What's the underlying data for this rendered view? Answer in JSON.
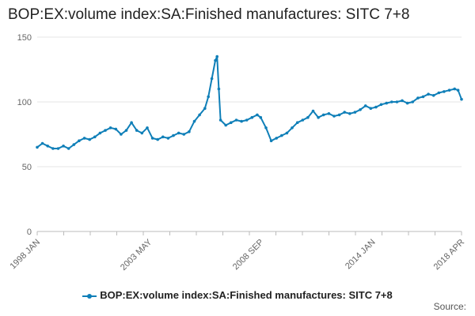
{
  "chart_data": {
    "type": "line",
    "title": "BOP:EX:volume index:SA:Finished manufactures: SITC 7+8",
    "xlabel": "",
    "ylabel": "",
    "ylim": [
      0,
      150
    ],
    "yticks": [
      0,
      50,
      100,
      150
    ],
    "grid": true,
    "legend_position": "bottom",
    "x_tick_labels": [
      "1998 JAN",
      "2003 MAY",
      "2008 SEP",
      "2014 JAN",
      "2018 APR"
    ],
    "x_tick_months": [
      "1998-01",
      "2003-05",
      "2008-09",
      "2014-01",
      "2018-04"
    ],
    "series": [
      {
        "name": "BOP:EX:volume index:SA:Finished manufactures: SITC 7+8",
        "color": "#0f7fb8",
        "points": [
          [
            "1998-01",
            65
          ],
          [
            "1998-04",
            68
          ],
          [
            "1998-07",
            66
          ],
          [
            "1998-10",
            64
          ],
          [
            "1999-01",
            64
          ],
          [
            "1999-04",
            66
          ],
          [
            "1999-07",
            64
          ],
          [
            "1999-10",
            67
          ],
          [
            "2000-01",
            70
          ],
          [
            "2000-04",
            72
          ],
          [
            "2000-07",
            71
          ],
          [
            "2000-10",
            73
          ],
          [
            "2001-01",
            76
          ],
          [
            "2001-04",
            78
          ],
          [
            "2001-07",
            80
          ],
          [
            "2001-10",
            79
          ],
          [
            "2002-01",
            75
          ],
          [
            "2002-04",
            78
          ],
          [
            "2002-07",
            84
          ],
          [
            "2002-10",
            78
          ],
          [
            "2003-01",
            76
          ],
          [
            "2003-04",
            80
          ],
          [
            "2003-07",
            72
          ],
          [
            "2003-10",
            71
          ],
          [
            "2004-01",
            73
          ],
          [
            "2004-04",
            72
          ],
          [
            "2004-07",
            74
          ],
          [
            "2004-10",
            76
          ],
          [
            "2005-01",
            75
          ],
          [
            "2005-04",
            77
          ],
          [
            "2005-07",
            85
          ],
          [
            "2005-10",
            90
          ],
          [
            "2006-01",
            95
          ],
          [
            "2006-03",
            104
          ],
          [
            "2006-05",
            118
          ],
          [
            "2006-07",
            132
          ],
          [
            "2006-08",
            135
          ],
          [
            "2006-09",
            110
          ],
          [
            "2006-10",
            86
          ],
          [
            "2007-01",
            82
          ],
          [
            "2007-04",
            84
          ],
          [
            "2007-07",
            86
          ],
          [
            "2007-10",
            85
          ],
          [
            "2008-01",
            86
          ],
          [
            "2008-04",
            88
          ],
          [
            "2008-07",
            90
          ],
          [
            "2008-09",
            88
          ],
          [
            "2008-12",
            80
          ],
          [
            "2009-03",
            70
          ],
          [
            "2009-06",
            72
          ],
          [
            "2009-09",
            74
          ],
          [
            "2009-12",
            76
          ],
          [
            "2010-03",
            80
          ],
          [
            "2010-06",
            84
          ],
          [
            "2010-09",
            86
          ],
          [
            "2010-12",
            88
          ],
          [
            "2011-03",
            93
          ],
          [
            "2011-06",
            88
          ],
          [
            "2011-09",
            90
          ],
          [
            "2011-12",
            91
          ],
          [
            "2012-03",
            89
          ],
          [
            "2012-06",
            90
          ],
          [
            "2012-09",
            92
          ],
          [
            "2012-12",
            91
          ],
          [
            "2013-03",
            92
          ],
          [
            "2013-06",
            94
          ],
          [
            "2013-09",
            97
          ],
          [
            "2013-12",
            95
          ],
          [
            "2014-03",
            96
          ],
          [
            "2014-06",
            98
          ],
          [
            "2014-09",
            99
          ],
          [
            "2014-12",
            100
          ],
          [
            "2015-03",
            100
          ],
          [
            "2015-06",
            101
          ],
          [
            "2015-09",
            99
          ],
          [
            "2015-12",
            100
          ],
          [
            "2016-03",
            103
          ],
          [
            "2016-06",
            104
          ],
          [
            "2016-09",
            106
          ],
          [
            "2016-12",
            105
          ],
          [
            "2017-03",
            107
          ],
          [
            "2017-06",
            108
          ],
          [
            "2017-09",
            109
          ],
          [
            "2017-12",
            110
          ],
          [
            "2018-02",
            109
          ],
          [
            "2018-04",
            102
          ]
        ]
      }
    ]
  },
  "footer": {
    "source_label": "Source:"
  }
}
